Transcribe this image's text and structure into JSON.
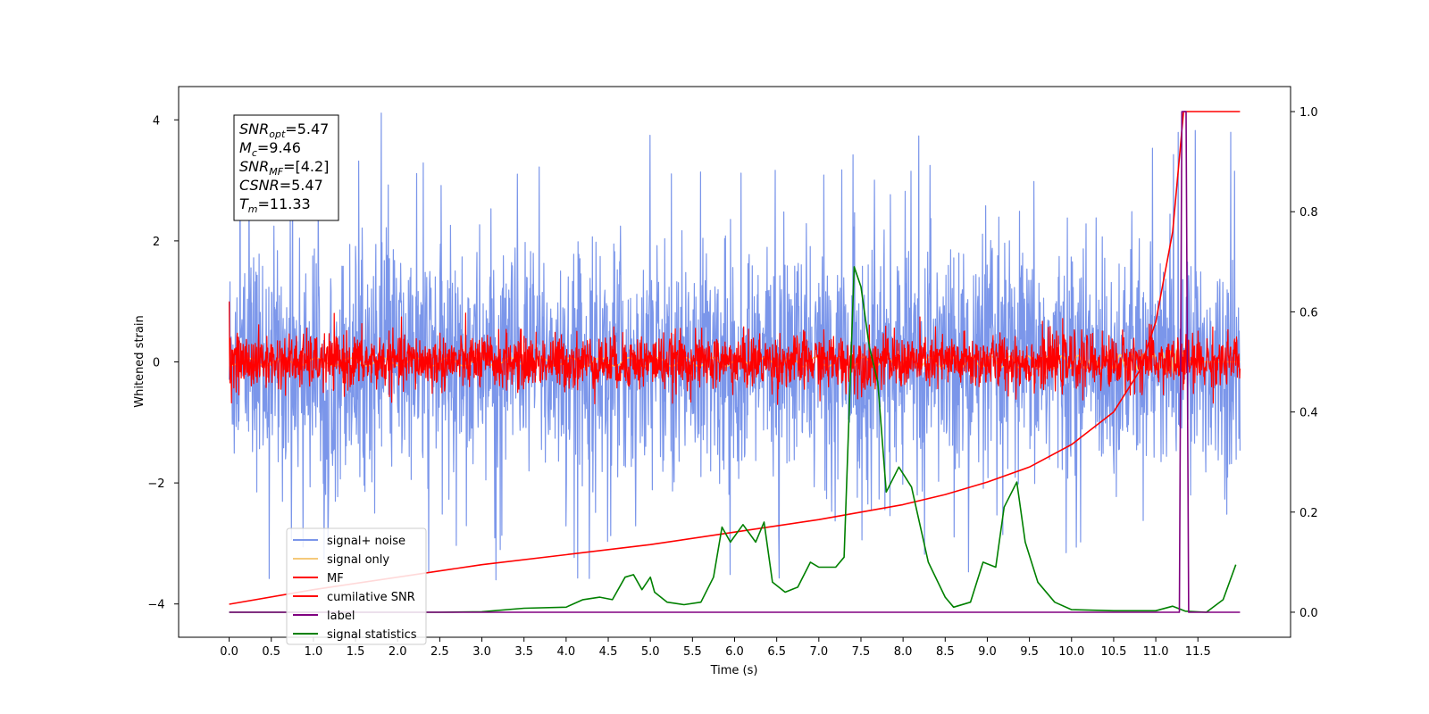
{
  "chart_data": {
    "type": "line",
    "title": "",
    "xlabel": "Time (s)",
    "ylabel": "Whitened strain",
    "y2label": "",
    "xlim": [
      -0.6,
      12.6
    ],
    "ylim": [
      -4.55,
      4.55
    ],
    "y2lim": [
      -0.05,
      1.05
    ],
    "xticks": [
      "0.0",
      "0.5",
      "1.0",
      "1.5",
      "2.0",
      "2.5",
      "3.0",
      "3.5",
      "4.0",
      "4.5",
      "5.0",
      "5.5",
      "6.0",
      "6.5",
      "7.0",
      "7.5",
      "8.0",
      "8.5",
      "9.0",
      "9.5",
      "10.0",
      "10.5",
      "11.0",
      "11.5"
    ],
    "yticks": [
      "4",
      "2",
      "0",
      "−2",
      "−4"
    ],
    "y2ticks": [
      "1.0",
      "0.8",
      "0.6",
      "0.4",
      "0.2",
      "0.0"
    ],
    "grid": false,
    "legend_position": "lower-left",
    "annotation": {
      "lines": [
        {
          "sym": "SNR",
          "sub": "opt",
          "val": "=5.47"
        },
        {
          "sym": "M",
          "sub": "c",
          "val": "=9.46"
        },
        {
          "sym": "SNR",
          "sub": "MF",
          "val": "=[4.2]"
        },
        {
          "sym": "CSNR",
          "sub": "",
          "val": "=5.47"
        },
        {
          "sym": "T",
          "sub": "m",
          "val": "=11.33"
        }
      ]
    },
    "series": [
      {
        "name": "signal+ noise",
        "axis": "left",
        "color": "#7b96ea",
        "style": "noise",
        "x_range": [
          0,
          12
        ],
        "amplitude_envelope": [
          -3.6,
          4.15
        ],
        "typical_band": [
          -1.9,
          1.9
        ]
      },
      {
        "name": "signal only",
        "axis": "left",
        "color": "#f5c97a",
        "style": "chirp",
        "x_range": [
          0,
          12
        ],
        "peak_amplitude": 0.3
      },
      {
        "name": "MF",
        "axis": "left",
        "color": "#ff0000",
        "style": "noise",
        "x_range": [
          0,
          12
        ],
        "typical_band": [
          -0.45,
          0.45
        ],
        "start_value": 1.0
      },
      {
        "name": "cumilative SNR",
        "axis": "right",
        "color": "#ff0000",
        "style": "line",
        "points": [
          [
            0,
            0.016
          ],
          [
            1,
            0.045
          ],
          [
            2,
            0.07
          ],
          [
            3,
            0.095
          ],
          [
            4,
            0.115
          ],
          [
            5,
            0.135
          ],
          [
            6,
            0.16
          ],
          [
            7,
            0.185
          ],
          [
            8,
            0.215
          ],
          [
            8.5,
            0.235
          ],
          [
            9,
            0.26
          ],
          [
            9.5,
            0.29
          ],
          [
            10,
            0.335
          ],
          [
            10.5,
            0.4
          ],
          [
            10.8,
            0.48
          ],
          [
            11.0,
            0.58
          ],
          [
            11.2,
            0.76
          ],
          [
            11.33,
            1.0
          ],
          [
            12,
            1.0
          ]
        ]
      },
      {
        "name": "label",
        "axis": "right",
        "color": "#800080",
        "style": "line",
        "points": [
          [
            0,
            0.0
          ],
          [
            11.28,
            0.0
          ],
          [
            11.31,
            1.0
          ],
          [
            11.36,
            1.0
          ],
          [
            11.39,
            0.0
          ],
          [
            12,
            0.0
          ]
        ]
      },
      {
        "name": "signal statistics",
        "axis": "right",
        "color": "#008000",
        "style": "line",
        "points": [
          [
            0,
            0.0
          ],
          [
            0.5,
            0.0
          ],
          [
            1,
            0.0
          ],
          [
            1.5,
            0.0
          ],
          [
            2,
            0.0
          ],
          [
            2.5,
            0.0
          ],
          [
            3,
            0.001
          ],
          [
            3.5,
            0.008
          ],
          [
            4,
            0.01
          ],
          [
            4.2,
            0.025
          ],
          [
            4.4,
            0.03
          ],
          [
            4.55,
            0.025
          ],
          [
            4.7,
            0.07
          ],
          [
            4.8,
            0.075
          ],
          [
            4.9,
            0.045
          ],
          [
            5,
            0.07
          ],
          [
            5.05,
            0.04
          ],
          [
            5.2,
            0.02
          ],
          [
            5.4,
            0.015
          ],
          [
            5.6,
            0.02
          ],
          [
            5.75,
            0.07
          ],
          [
            5.85,
            0.17
          ],
          [
            5.95,
            0.14
          ],
          [
            6.1,
            0.175
          ],
          [
            6.25,
            0.14
          ],
          [
            6.35,
            0.18
          ],
          [
            6.45,
            0.06
          ],
          [
            6.6,
            0.04
          ],
          [
            6.75,
            0.05
          ],
          [
            6.9,
            0.1
          ],
          [
            7.0,
            0.09
          ],
          [
            7.2,
            0.09
          ],
          [
            7.3,
            0.11
          ],
          [
            7.42,
            0.69
          ],
          [
            7.5,
            0.65
          ],
          [
            7.6,
            0.53
          ],
          [
            7.7,
            0.46
          ],
          [
            7.8,
            0.24
          ],
          [
            7.95,
            0.29
          ],
          [
            8.1,
            0.25
          ],
          [
            8.3,
            0.1
          ],
          [
            8.5,
            0.03
          ],
          [
            8.6,
            0.01
          ],
          [
            8.8,
            0.02
          ],
          [
            8.95,
            0.1
          ],
          [
            9.1,
            0.09
          ],
          [
            9.2,
            0.21
          ],
          [
            9.35,
            0.26
          ],
          [
            9.45,
            0.14
          ],
          [
            9.6,
            0.06
          ],
          [
            9.8,
            0.02
          ],
          [
            10,
            0.005
          ],
          [
            10.5,
            0.003
          ],
          [
            11,
            0.003
          ],
          [
            11.2,
            0.012
          ],
          [
            11.35,
            0.002
          ],
          [
            11.6,
            0.0
          ],
          [
            11.8,
            0.025
          ],
          [
            11.95,
            0.095
          ]
        ]
      }
    ]
  }
}
